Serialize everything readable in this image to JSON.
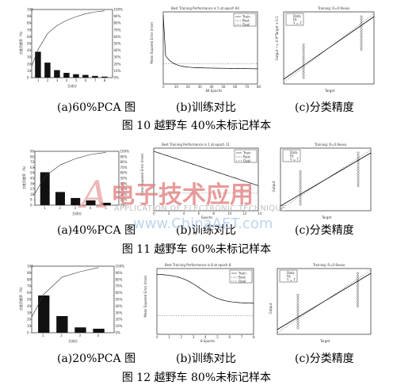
{
  "rows": [
    {
      "pca": {
        "title": "",
        "ylabel": "方差贡献率（%）",
        "xlabel": "主成分",
        "bars": [
          38,
          22,
          11,
          7,
          5,
          4,
          2.5,
          1.5
        ],
        "ymax": 100,
        "cum_labels": [
          "0%",
          "10%",
          "20%",
          "30%",
          "40%",
          "50%",
          "60%",
          "70%",
          "80%",
          "90%",
          "100%"
        ]
      },
      "train": {
        "title": "Best Training Performance is 5 at epoch 64",
        "ylabel": "Mean Squared Error (mse)",
        "xlabel": "84 Epochs",
        "legend": [
          "Train",
          "Best",
          "Goal"
        ],
        "xticks": [
          "0",
          "10",
          "20",
          "30",
          "40",
          "50",
          "60",
          "70",
          "80"
        ]
      },
      "cls": {
        "title": "Training: R=0.9xxxx",
        "ylabel": "Output ~= 0.9*Target + 0.1",
        "xlabel": "Target",
        "legend": [
          "Data",
          "Fit",
          "Y = T"
        ]
      },
      "captions": [
        "(a)60%PCA 图",
        "(b)训练对比",
        "(c)分类精度"
      ],
      "figure": "图 10    越野车 40%未标记样本"
    },
    {
      "pca": {
        "title": "",
        "ylabel": "方差贡献率（%）",
        "xlabel": "主成分",
        "bars": [
          55,
          22,
          12,
          8,
          4
        ],
        "ymax": 90
      },
      "train": {
        "title": "Best Training Performance is 1 at epoch 11",
        "ylabel": "Mean Squared Error (mse)",
        "xlabel": "Epochs",
        "legend": [
          "Train",
          "Best",
          "Goal"
        ]
      },
      "cls": {
        "title": "Training: R=0.9xxxx",
        "ylabel": "Output",
        "xlabel": "Target",
        "legend": [
          "Data",
          "Fit",
          "Y = T"
        ]
      },
      "captions": [
        "(a)40%PCA 图",
        "(b)训练对比",
        "(c)分类精度"
      ],
      "figure": "图 11    越野车 60%未标记样本"
    },
    {
      "pca": {
        "title": "",
        "ylabel": "方差贡献率（%）",
        "xlabel": "主成分",
        "bars": [
          56,
          25,
          8,
          6
        ],
        "ymax": 100
      },
      "train": {
        "title": "Best Training Performance is 8 at epoch 8",
        "ylabel": "Mean Squared Error (mse)",
        "xlabel": "8 Epochs",
        "legend": [
          "Train",
          "Best",
          "Goal"
        ],
        "xticks": [
          "0",
          "1",
          "2",
          "3",
          "4",
          "5",
          "6",
          "7",
          "8"
        ]
      },
      "cls": {
        "title": "Training: R=0.9xxxx",
        "ylabel": "Output",
        "xlabel": "Target",
        "legend": [
          "Data",
          "Fit",
          "Y = T"
        ]
      },
      "captions": [
        "(a)20%PCA 图",
        "(b)训练对比",
        "(c)分类精度"
      ],
      "figure": "图 12    越野车 80%未标记样本"
    }
  ],
  "watermark": {
    "logo_text": "电子技术应用",
    "line2": "APPLICATION OF ELECTRONIC TECHNIQUE",
    "line3": "www.ChinaAET.com"
  }
}
